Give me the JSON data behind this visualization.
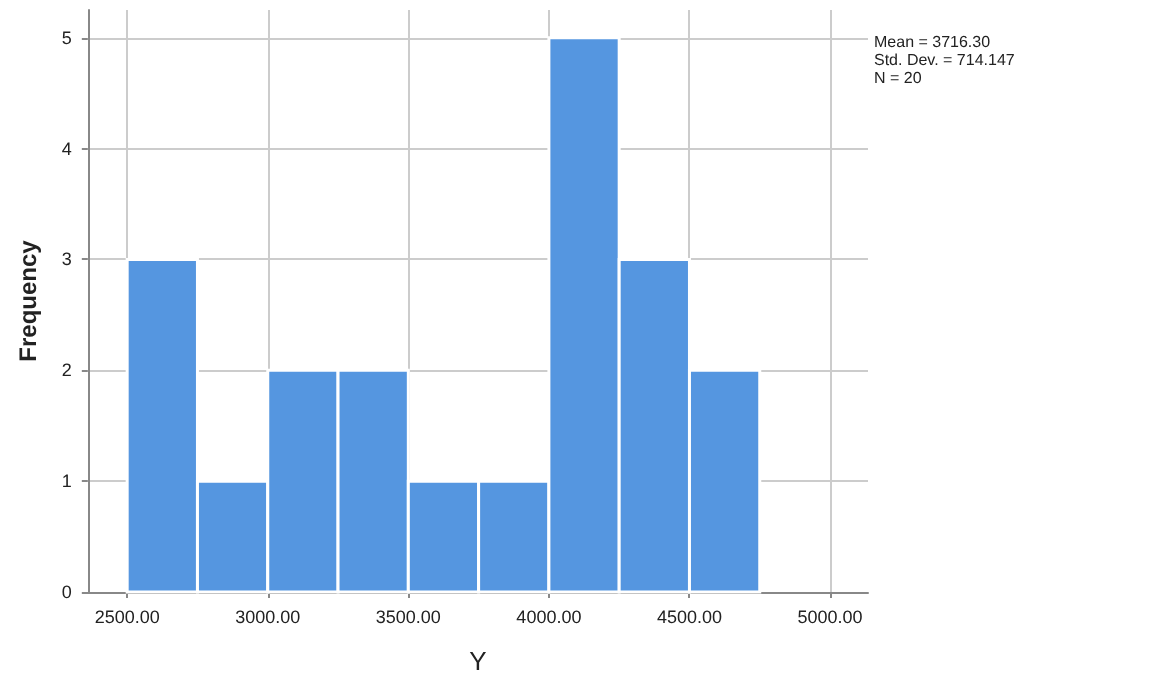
{
  "chart_data": {
    "type": "histogram",
    "xlabel": "Y",
    "ylabel": "Frequency",
    "bins": [
      2500,
      2750,
      3000,
      3250,
      3500,
      3750,
      4000,
      4250,
      4500,
      4750
    ],
    "values": [
      3,
      1,
      2,
      2,
      1,
      1,
      5,
      3,
      2
    ],
    "color": "#5596e0",
    "xlim": [
      2360,
      5135
    ],
    "xticks": [
      {
        "value": 2500,
        "label": "2500.00"
      },
      {
        "value": 3000,
        "label": "3000.00"
      },
      {
        "value": 3500,
        "label": "3500.00"
      },
      {
        "value": 4000,
        "label": "4000.00"
      },
      {
        "value": 4500,
        "label": "4500.00"
      },
      {
        "value": 5000,
        "label": "5000.00"
      }
    ],
    "ylim": [
      0,
      5.25
    ],
    "yticks": [
      0,
      1,
      2,
      3,
      4,
      5
    ],
    "grid": true,
    "annotations": [
      "Mean = 3716.30",
      "Std. Dev. = 714.147",
      "N = 20"
    ]
  }
}
